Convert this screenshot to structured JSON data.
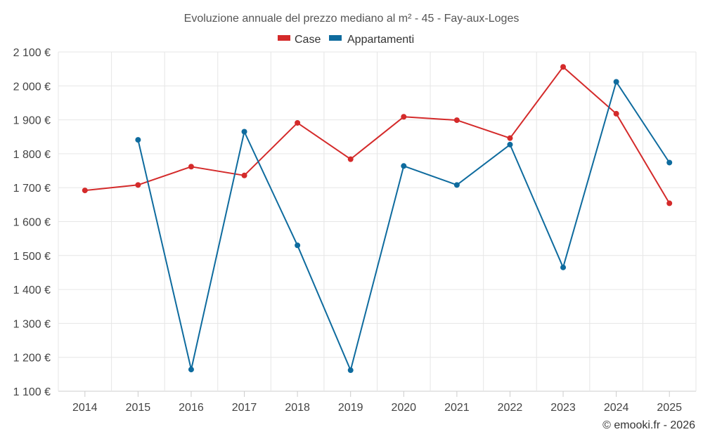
{
  "chart_data": {
    "type": "line",
    "title": "Evoluzione annuale del prezzo mediano al m² - 45 - Fay-aux-Loges",
    "categories": [
      "2014",
      "2015",
      "2016",
      "2017",
      "2018",
      "2019",
      "2020",
      "2021",
      "2022",
      "2023",
      "2024",
      "2025"
    ],
    "y_ticks": [
      "1 100 €",
      "1 200 €",
      "1 300 €",
      "1 400 €",
      "1 500 €",
      "1 600 €",
      "1 700 €",
      "1 800 €",
      "1 900 €",
      "2 000 €",
      "2 100 €"
    ],
    "ylim": [
      1100,
      2100
    ],
    "ytick_step": 100,
    "grid": true,
    "legend_position": "top-center",
    "series": [
      {
        "name": "Case",
        "color": "#d42a2a",
        "values": [
          1692,
          1708,
          1762,
          1736,
          1891,
          1784,
          1909,
          1899,
          1846,
          2056,
          1918,
          1654
        ]
      },
      {
        "name": "Appartamenti",
        "color": "#0e6b9e",
        "values": [
          null,
          1841,
          1164,
          1865,
          1530,
          1162,
          1764,
          1708,
          1827,
          1465,
          2012,
          1774
        ]
      }
    ],
    "credit": "© emooki.fr - 2026"
  }
}
